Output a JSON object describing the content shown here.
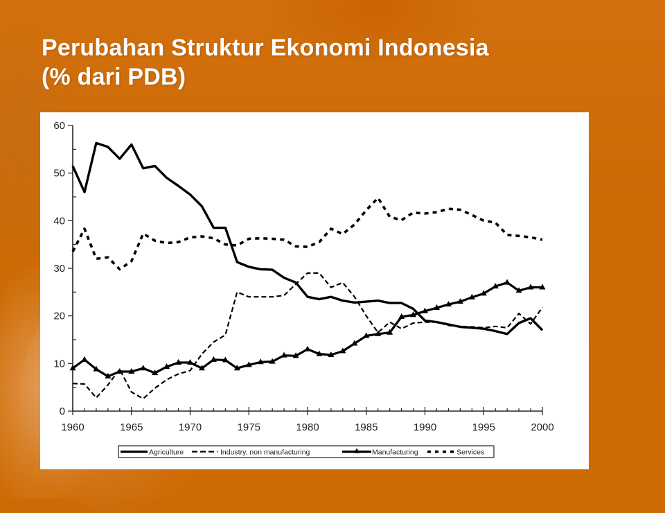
{
  "slide": {
    "title_line1": "Perubahan Struktur Ekonomi Indonesia",
    "title_line2": "(% dari PDB)",
    "background_color": "#cc6a06",
    "title_color": "#ffffff"
  },
  "chart_data": {
    "type": "line",
    "title": "Perubahan Struktur Ekonomi Indonesia (% dari PDB)",
    "xlabel": "",
    "ylabel": "",
    "xlim": [
      1960,
      2000
    ],
    "ylim": [
      0,
      60
    ],
    "x_ticks": [
      "1960",
      "1965",
      "1970",
      "1975",
      "1980",
      "1985",
      "1990",
      "1995",
      "2000"
    ],
    "y_ticks": [
      "0",
      "10",
      "20",
      "30",
      "40",
      "50",
      "60"
    ],
    "grid": false,
    "legend_position": "bottom",
    "x": [
      1960,
      1961,
      1962,
      1963,
      1964,
      1965,
      1966,
      1967,
      1968,
      1969,
      1970,
      1971,
      1972,
      1973,
      1974,
      1975,
      1976,
      1977,
      1978,
      1979,
      1980,
      1981,
      1982,
      1983,
      1984,
      1985,
      1986,
      1987,
      1988,
      1989,
      1990,
      1991,
      1992,
      1993,
      1994,
      1995,
      1996,
      1997,
      1998,
      1999,
      2000
    ],
    "series": [
      {
        "name": "Agriculture",
        "style": "solid-thick",
        "values": [
          51.5,
          46,
          56.3,
          55.5,
          53,
          56,
          51,
          51.5,
          49,
          47.3,
          45.5,
          43,
          38.5,
          38.5,
          31.3,
          30.3,
          29.8,
          29.7,
          28,
          27,
          24,
          23.5,
          24,
          23.2,
          22.8,
          23,
          23.2,
          22.7,
          22.7,
          21.5,
          19,
          18.7,
          18.2,
          17.7,
          17.5,
          17.3,
          16.8,
          16.2,
          18.5,
          19.5,
          17
        ]
      },
      {
        "name": "Industry, non manufacturing",
        "style": "dashed",
        "values": [
          5.8,
          5.7,
          2.8,
          5.5,
          8.8,
          4,
          2.6,
          4.8,
          6.6,
          7.8,
          8.5,
          12,
          14.5,
          16,
          25,
          24,
          24,
          24,
          24.3,
          26.7,
          29,
          29,
          26,
          27,
          24,
          20,
          16.5,
          18.7,
          17.3,
          18.5,
          18.7,
          18.7,
          18,
          17.8,
          17.7,
          17.5,
          17.8,
          17.5,
          20.5,
          18.3,
          21.8
        ]
      },
      {
        "name": "Manufacturing",
        "style": "solid-triangle-markers",
        "values": [
          9,
          10.8,
          8.8,
          7.3,
          8.3,
          8.3,
          9,
          8,
          9.3,
          10.2,
          10.2,
          9,
          10.8,
          10.7,
          9,
          9.7,
          10.3,
          10.4,
          11.7,
          11.6,
          13,
          12,
          11.8,
          12.6,
          14.2,
          15.8,
          16.2,
          16.5,
          19.8,
          20.2,
          21,
          21.7,
          22.4,
          23,
          23.9,
          24.7,
          26.2,
          27,
          25.3,
          26,
          26
        ],
        "marker": "triangle"
      },
      {
        "name": "Services",
        "style": "dotted-thick",
        "values": [
          33.5,
          38.3,
          32,
          32.3,
          29.8,
          31.5,
          37.3,
          35.8,
          35.3,
          35.5,
          36.5,
          36.7,
          36.3,
          35,
          34.8,
          36.2,
          36.3,
          36.2,
          36,
          34.6,
          34.5,
          35.5,
          38.3,
          37.2,
          39.2,
          42.2,
          44.8,
          40.8,
          40.1,
          41.7,
          41.5,
          41.8,
          42.5,
          42.3,
          41.2,
          40,
          39.6,
          37,
          36.8,
          36.5,
          36
        ]
      }
    ]
  },
  "legend": {
    "items": [
      {
        "label": "Agriculture",
        "style": "solid"
      },
      {
        "label": "Industry, non manufacturing",
        "style": "dashed"
      },
      {
        "label": "Manufacturing",
        "style": "solid-triangle"
      },
      {
        "label": "Services",
        "style": "dotted"
      }
    ]
  }
}
